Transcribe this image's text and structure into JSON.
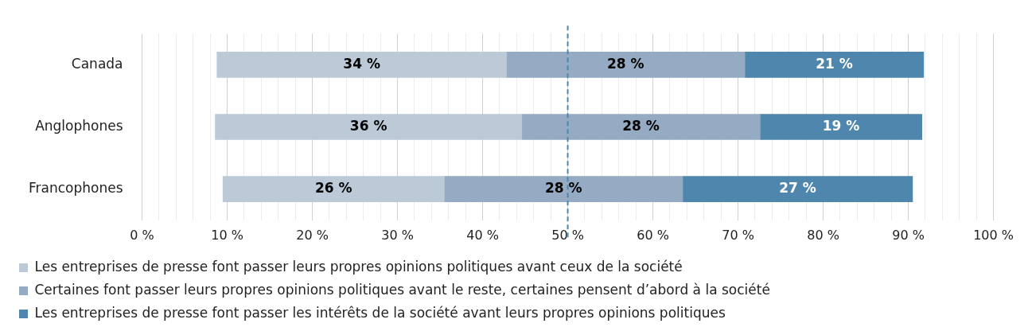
{
  "chart_data": {
    "type": "bar",
    "orientation": "horizontal",
    "categories": [
      "Canada",
      "Anglophones",
      "Francophones"
    ],
    "series": [
      {
        "name": "Les entreprises de presse font passer leurs propres opinions politiques avant ceux de la société",
        "color": "#bccad8",
        "base": [
          8.8,
          8.6,
          9.5
        ],
        "values": [
          34,
          36,
          26
        ],
        "value_labels": [
          "34 %",
          "36 %",
          "26 %"
        ]
      },
      {
        "name": "Certaines font passer leurs propres opinions politiques avant le reste, certaines pensent d’abord à la société",
        "color": "#94abc3",
        "base": [
          42.8,
          44.6,
          35.5
        ],
        "values": [
          28,
          28,
          28
        ],
        "value_labels": [
          "28 %",
          "28 %",
          "28 %"
        ]
      },
      {
        "name": "Les entreprises de presse font passer les intérêts de la société avant leurs propres opinions politiques",
        "color": "#4f86ad",
        "base": [
          70.8,
          72.6,
          63.5
        ],
        "values": [
          21,
          19,
          27
        ],
        "value_labels": [
          "21 %",
          "19 %",
          "27 %"
        ]
      }
    ],
    "xlim": [
      0,
      100
    ],
    "xticks": [
      {
        "value": 0,
        "label": "0 %"
      },
      {
        "value": 2,
        "label": null
      },
      {
        "value": 4,
        "label": null
      },
      {
        "value": 6,
        "label": null
      },
      {
        "value": 8,
        "label": null
      },
      {
        "value": 10,
        "label": "10 %"
      },
      {
        "value": 12,
        "label": null
      },
      {
        "value": 14,
        "label": null
      },
      {
        "value": 16,
        "label": null
      },
      {
        "value": 18,
        "label": null
      },
      {
        "value": 20,
        "label": "20 %"
      },
      {
        "value": 22,
        "label": null
      },
      {
        "value": 24,
        "label": null
      },
      {
        "value": 26,
        "label": null
      },
      {
        "value": 28,
        "label": null
      },
      {
        "value": 30,
        "label": "30 %"
      },
      {
        "value": 32,
        "label": null
      },
      {
        "value": 34,
        "label": null
      },
      {
        "value": 36,
        "label": null
      },
      {
        "value": 38,
        "label": null
      },
      {
        "value": 40,
        "label": "40 %"
      },
      {
        "value": 42,
        "label": null
      },
      {
        "value": 44,
        "label": null
      },
      {
        "value": 46,
        "label": null
      },
      {
        "value": 48,
        "label": null
      },
      {
        "value": 50,
        "label": "50 %"
      },
      {
        "value": 52,
        "label": null
      },
      {
        "value": 54,
        "label": null
      },
      {
        "value": 56,
        "label": null
      },
      {
        "value": 58,
        "label": null
      },
      {
        "value": 60,
        "label": "60 %"
      },
      {
        "value": 62,
        "label": null
      },
      {
        "value": 64,
        "label": null
      },
      {
        "value": 66,
        "label": null
      },
      {
        "value": 68,
        "label": null
      },
      {
        "value": 70,
        "label": "70 %"
      },
      {
        "value": 72,
        "label": null
      },
      {
        "value": 74,
        "label": null
      },
      {
        "value": 76,
        "label": null
      },
      {
        "value": 78,
        "label": null
      },
      {
        "value": 80,
        "label": "80 %"
      },
      {
        "value": 82,
        "label": null
      },
      {
        "value": 84,
        "label": null
      },
      {
        "value": 86,
        "label": null
      },
      {
        "value": 88,
        "label": null
      },
      {
        "value": 90,
        "label": "90 %"
      },
      {
        "value": 92,
        "label": null
      },
      {
        "value": 94,
        "label": null
      },
      {
        "value": 96,
        "label": null
      },
      {
        "value": 98,
        "label": null
      },
      {
        "value": 100,
        "label": "100 %"
      }
    ],
    "grid": "x",
    "legend": "bottom",
    "ref_lines": [
      {
        "axis": "x",
        "value": 50,
        "color": "#4f86ad",
        "line_style": "dashed"
      }
    ]
  }
}
